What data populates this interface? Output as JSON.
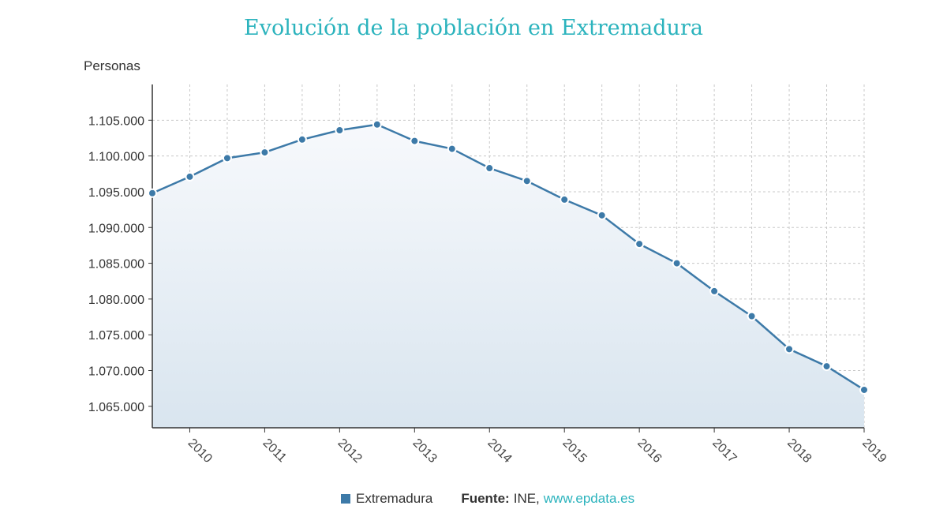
{
  "chart_data": {
    "type": "line",
    "title": "Evolución de la población en Extremadura",
    "ylabel": "Personas",
    "xlabel": "",
    "ylim": [
      1062000,
      1110000
    ],
    "yticks": [
      1065000,
      1070000,
      1075000,
      1080000,
      1085000,
      1090000,
      1095000,
      1100000,
      1105000
    ],
    "ytick_labels": [
      "1.065.000",
      "1.070.000",
      "1.075.000",
      "1.080.000",
      "1.085.000",
      "1.090.000",
      "1.095.000",
      "1.100.000",
      "1.105.000"
    ],
    "xlim": [
      2009.5,
      2019
    ],
    "xticks": [
      2010,
      2011,
      2012,
      2013,
      2014,
      2015,
      2016,
      2017,
      2018,
      2019
    ],
    "xtick_labels": [
      "2010",
      "2011",
      "2012",
      "2013",
      "2014",
      "2015",
      "2016",
      "2017",
      "2018",
      "2019"
    ],
    "series": [
      {
        "name": "Extremadura",
        "color": "#3d7aa8",
        "x": [
          2009.5,
          2010,
          2010.5,
          2011,
          2011.5,
          2012,
          2012.5,
          2013,
          2013.5,
          2014,
          2014.5,
          2015,
          2015.5,
          2016,
          2016.5,
          2017,
          2017.5,
          2018,
          2018.5,
          2019
        ],
        "values": [
          1094800,
          1097100,
          1099700,
          1100500,
          1102300,
          1103600,
          1104400,
          1102100,
          1101000,
          1098300,
          1096500,
          1093900,
          1091700,
          1087700,
          1085000,
          1081100,
          1077600,
          1073000,
          1070600,
          1067300
        ]
      }
    ],
    "grid": true,
    "legend": "bottom"
  },
  "legend": {
    "label": "Extremadura",
    "source_label": "Fuente:",
    "source_value": "INE,",
    "source_link": "www.epdata.es"
  }
}
